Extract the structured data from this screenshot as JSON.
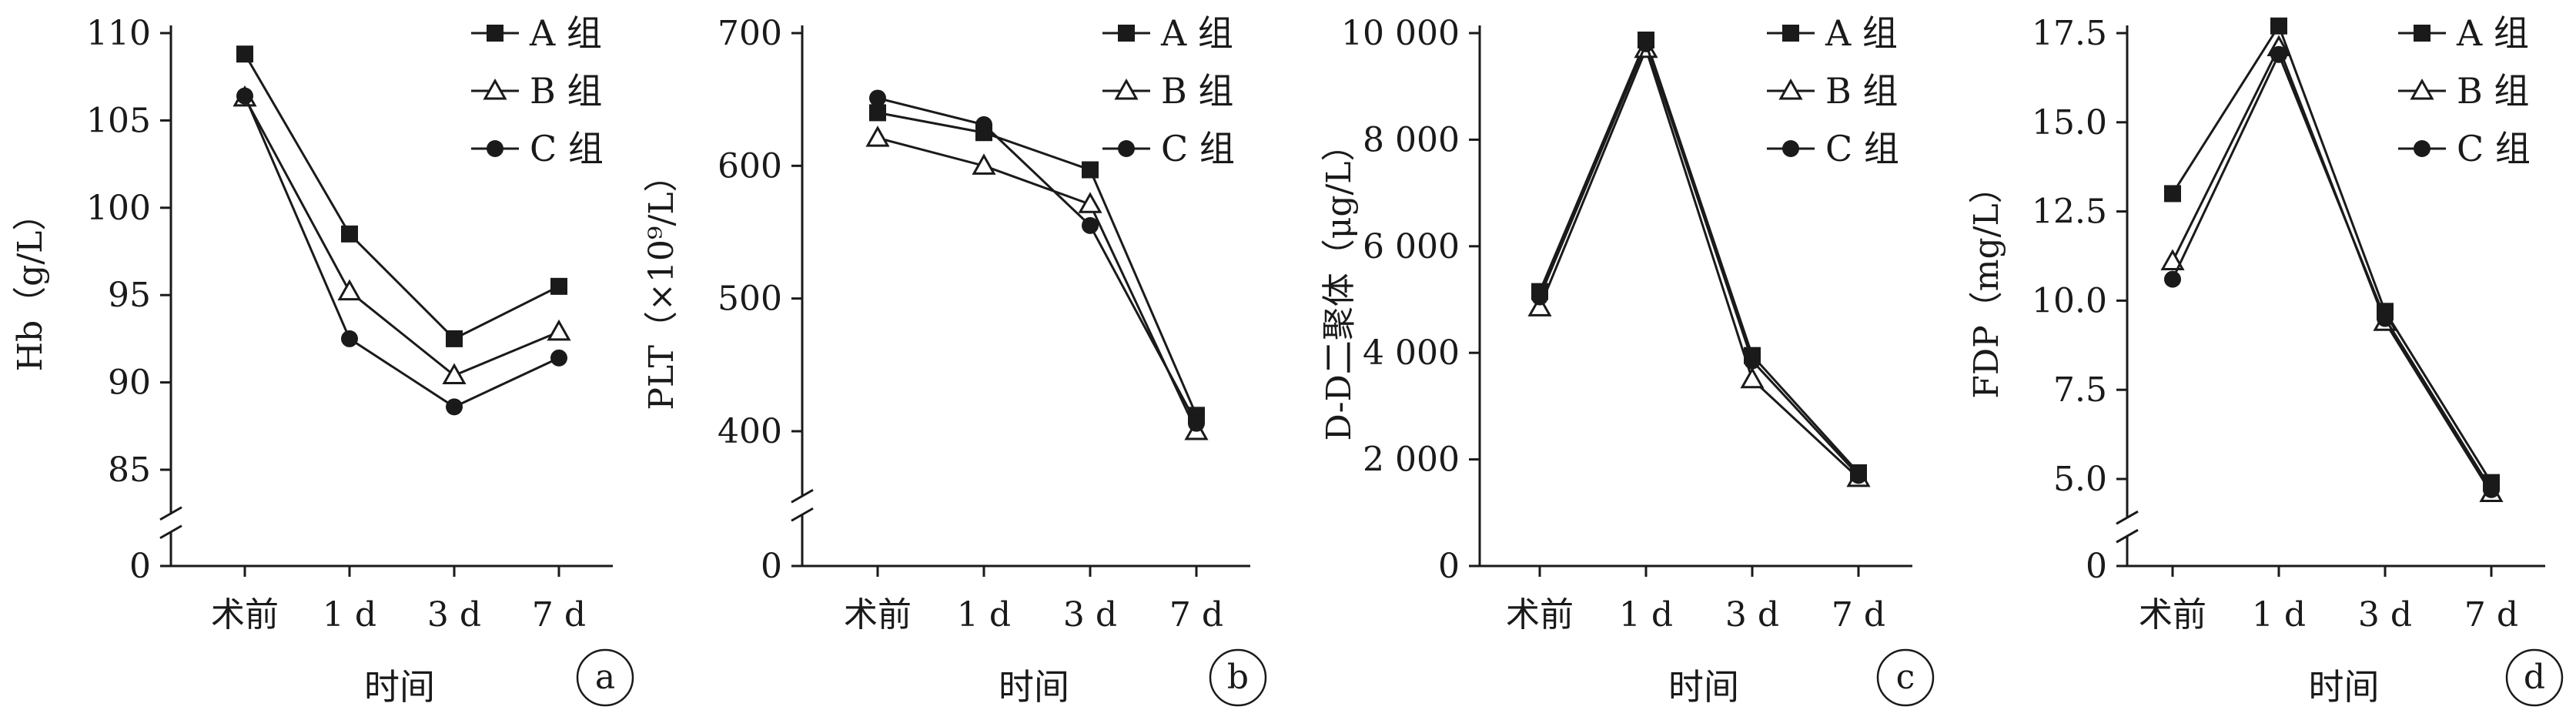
{
  "chart_data": [
    {
      "type": "line",
      "panel": "a",
      "ylabel": "Hb（g/L）",
      "xlabel": "时间",
      "categories": [
        "术前",
        "1 d",
        "3 d",
        "7 d"
      ],
      "axis_break": [
        0,
        85
      ],
      "ylim": [
        85,
        110
      ],
      "yticks": [
        85,
        90,
        95,
        100,
        105,
        110
      ],
      "ytick_labels": [
        "85",
        "90",
        "95",
        "100",
        "105",
        "110"
      ],
      "zero_label": "0",
      "series": [
        {
          "name": "A 组",
          "marker": "square-filled",
          "values": [
            108.8,
            98.5,
            92.5,
            95.5
          ]
        },
        {
          "name": "B 组",
          "marker": "triangle-open",
          "values": [
            106.3,
            95.2,
            90.4,
            92.9
          ]
        },
        {
          "name": "C 组",
          "marker": "circle-filled",
          "values": [
            106.4,
            92.5,
            88.6,
            91.4
          ]
        }
      ]
    },
    {
      "type": "line",
      "panel": "b",
      "ylabel": "PLT（×10⁹/L）",
      "xlabel": "时间",
      "categories": [
        "术前",
        "1 d",
        "3 d",
        "7 d"
      ],
      "axis_break": [
        0,
        400
      ],
      "ylim": [
        400,
        700
      ],
      "yticks": [
        400,
        500,
        600,
        700
      ],
      "ytick_labels": [
        "400",
        "500",
        "600",
        "700"
      ],
      "zero_label": "0",
      "series": [
        {
          "name": "A 组",
          "marker": "square-filled",
          "values": [
            640,
            625,
            597,
            412
          ]
        },
        {
          "name": "B 组",
          "marker": "triangle-open",
          "values": [
            621,
            600,
            571,
            400
          ]
        },
        {
          "name": "C 组",
          "marker": "circle-filled",
          "values": [
            651,
            631,
            555,
            406
          ]
        }
      ]
    },
    {
      "type": "line",
      "panel": "c",
      "ylabel": "D-D二聚体（μg/L）",
      "xlabel": "时间",
      "categories": [
        "术前",
        "1 d",
        "3 d",
        "7 d"
      ],
      "ylim": [
        0,
        10000
      ],
      "yticks": [
        0,
        2000,
        4000,
        6000,
        8000,
        10000
      ],
      "ytick_labels": [
        "0",
        "2 000",
        "4 000",
        "6 000",
        "8 000",
        "10 000"
      ],
      "series": [
        {
          "name": "A 组",
          "marker": "square-filled",
          "values": [
            5150,
            9870,
            3950,
            1750
          ]
        },
        {
          "name": "B 组",
          "marker": "triangle-open",
          "values": [
            4850,
            9700,
            3500,
            1650
          ]
        },
        {
          "name": "C 组",
          "marker": "circle-filled",
          "values": [
            5050,
            9800,
            3850,
            1700
          ]
        }
      ]
    },
    {
      "type": "line",
      "panel": "d",
      "ylabel": "FDP（mg/L）",
      "xlabel": "时间",
      "categories": [
        "术前",
        "1 d",
        "3 d",
        "7 d"
      ],
      "axis_break": [
        0,
        5
      ],
      "ylim": [
        5,
        17.5
      ],
      "yticks": [
        5,
        7.5,
        10,
        12.5,
        15,
        17.5
      ],
      "ytick_labels": [
        "5.0",
        "7.5",
        "10.0",
        "12.5",
        "15.0",
        "17.5"
      ],
      "zero_label": "0",
      "series": [
        {
          "name": "A 组",
          "marker": "square-filled",
          "values": [
            13.0,
            17.7,
            9.7,
            4.9
          ]
        },
        {
          "name": "B 组",
          "marker": "triangle-open",
          "values": [
            11.1,
            17.1,
            9.4,
            4.6
          ]
        },
        {
          "name": "C 组",
          "marker": "circle-filled",
          "values": [
            10.6,
            16.9,
            9.5,
            4.7
          ]
        }
      ]
    }
  ]
}
